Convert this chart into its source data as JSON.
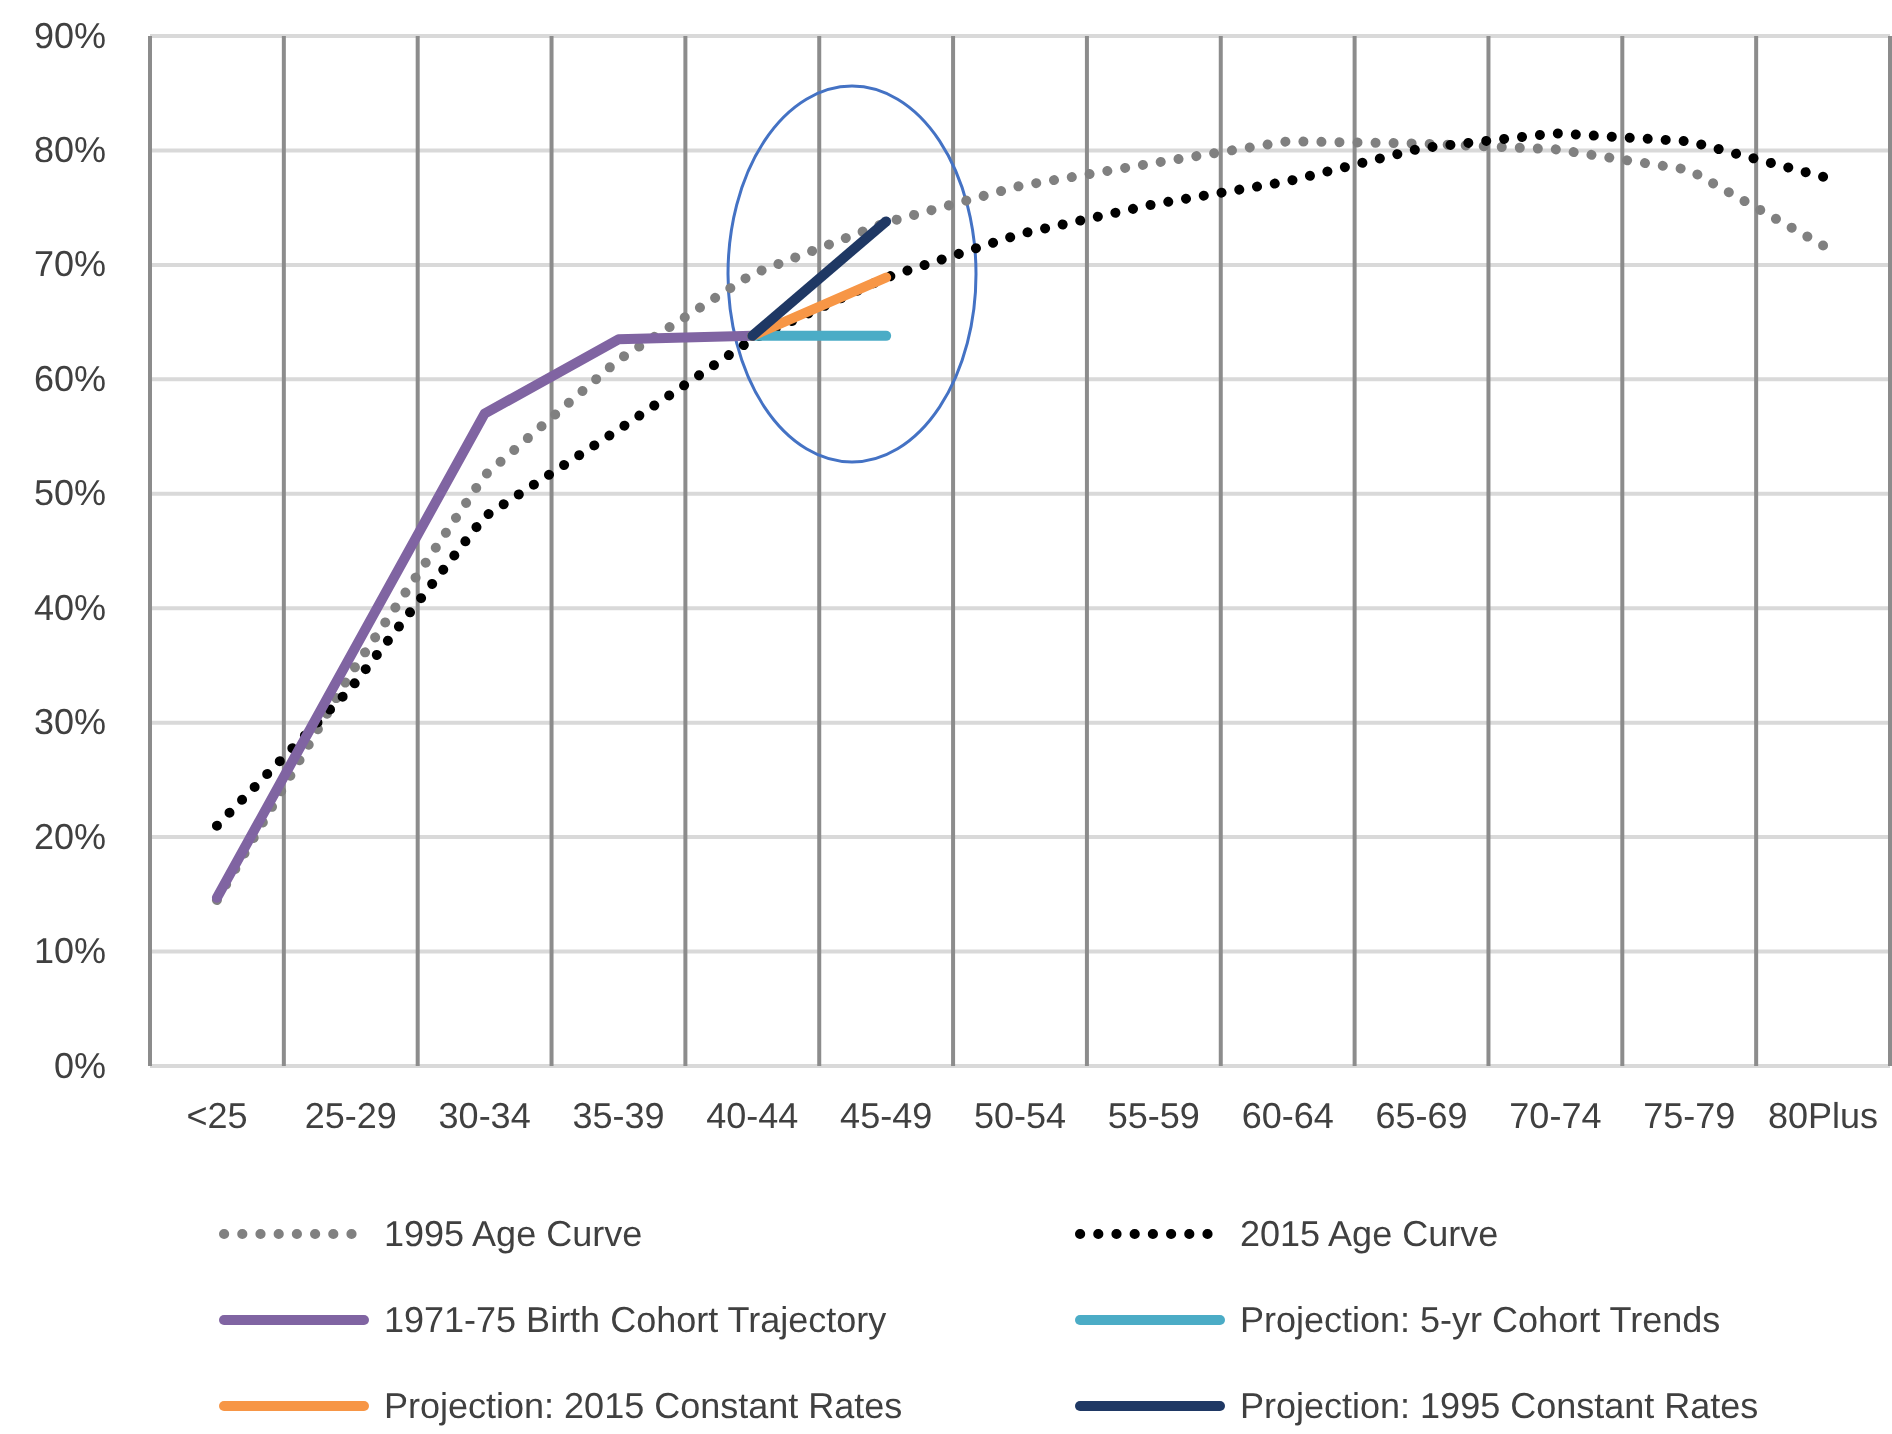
{
  "chart_data": {
    "type": "line",
    "categories": [
      "<25",
      "25-29",
      "30-34",
      "35-39",
      "40-44",
      "45-49",
      "50-54",
      "55-59",
      "60-64",
      "65-69",
      "70-74",
      "75-79",
      "80Plus"
    ],
    "ylim": [
      0,
      90
    ],
    "yticks": [
      {
        "value": 0,
        "label": "0%"
      },
      {
        "value": 10,
        "label": "10%"
      },
      {
        "value": 20,
        "label": "20%"
      },
      {
        "value": 30,
        "label": "30%"
      },
      {
        "value": 40,
        "label": "40%"
      },
      {
        "value": 50,
        "label": "50%"
      },
      {
        "value": 60,
        "label": "60%"
      },
      {
        "value": 70,
        "label": "70%"
      },
      {
        "value": 80,
        "label": "80%"
      },
      {
        "value": 90,
        "label": "90%"
      }
    ],
    "grid": true,
    "legend": "bottom",
    "marker": "none",
    "series": [
      {
        "name": "1995 Age Curve",
        "color": "#808080",
        "line_style": "dotted",
        "values": [
          14.5,
          34.3,
          51.6,
          61.7,
          69.2,
          73.7,
          76.9,
          78.9,
          80.8,
          80.6,
          80.1,
          78.3,
          71.7
        ]
      },
      {
        "name": "2015 Age Curve",
        "color": "#000000",
        "line_style": "dotted",
        "values": [
          21,
          33,
          48,
          55.6,
          63.5,
          68.9,
          72.7,
          75.3,
          77.3,
          80.2,
          81.5,
          80.8,
          77.7
        ]
      },
      {
        "name": "1971-75 Birth Cohort Trajectory",
        "color": "#8064a2",
        "line_style": "solid",
        "values": [
          14.7,
          null,
          57,
          63.5,
          63.8,
          null,
          null,
          null,
          null,
          null,
          null,
          null,
          null
        ]
      },
      {
        "name": "Projection: 5-yr Cohort Trends",
        "color": "#4bacc6",
        "line_style": "solid",
        "values": [
          null,
          null,
          null,
          null,
          63.8,
          63.8,
          null,
          null,
          null,
          null,
          null,
          null,
          null
        ]
      },
      {
        "name": "Projection: 2015 Constant Rates",
        "color": "#f79646",
        "line_style": "solid",
        "values": [
          null,
          null,
          null,
          null,
          63.8,
          68.9,
          null,
          null,
          null,
          null,
          null,
          null,
          null
        ]
      },
      {
        "name": "Projection: 1995 Constant Rates",
        "color": "#1f3864",
        "line_style": "solid",
        "values": [
          null,
          null,
          null,
          null,
          63.8,
          73.8,
          null,
          null,
          null,
          null,
          null,
          null,
          null
        ]
      }
    ]
  }
}
